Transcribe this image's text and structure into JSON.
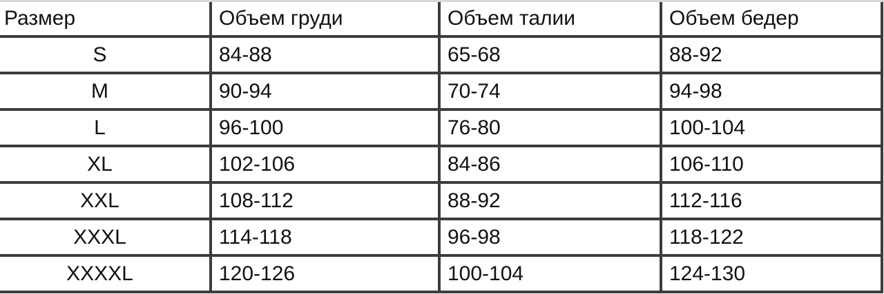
{
  "table": {
    "headers": [
      "Размер",
      "Объем груди",
      "Объем талии",
      "Объем бедер"
    ],
    "rows": [
      [
        "S",
        "84-88",
        "65-68",
        "88-92"
      ],
      [
        "M",
        "90-94",
        "70-74",
        "94-98"
      ],
      [
        "L",
        "96-100",
        "76-80",
        "100-104"
      ],
      [
        "XL",
        "102-106",
        "84-86",
        "106-110"
      ],
      [
        "XXL",
        "108-112",
        "88-92",
        "112-116"
      ],
      [
        "XXXL",
        "114-118",
        "96-98",
        "118-122"
      ],
      [
        "XXXXL",
        "120-126",
        "100-104",
        "124-130"
      ]
    ]
  },
  "colors": {
    "border": "#3c3c3c",
    "text": "#111111"
  }
}
